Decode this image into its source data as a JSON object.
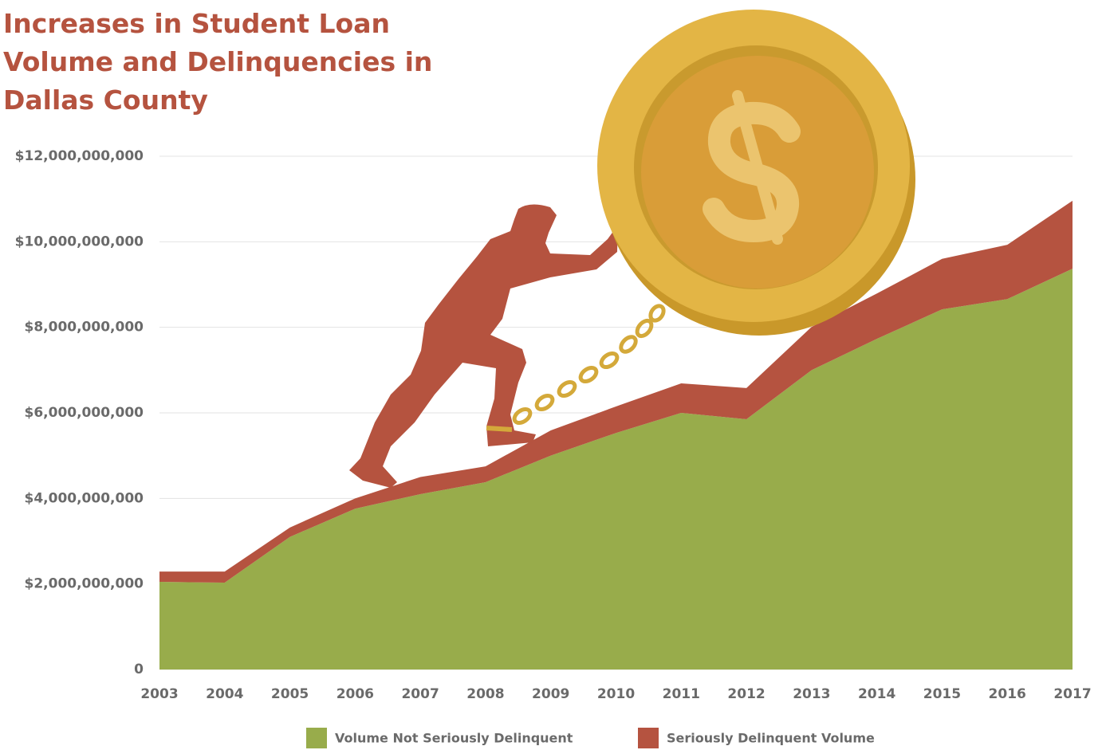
{
  "chart_data": {
    "type": "stacked-area",
    "title": "Increases in Student Loan Volume and Delinquencies in Dallas County",
    "categories": [
      "2003",
      "2004",
      "2005",
      "2006",
      "2007",
      "2008",
      "2009",
      "2010",
      "2011",
      "2012",
      "2013",
      "2014",
      "2015",
      "2016",
      "2017"
    ],
    "series": [
      {
        "name": "Volume Not Seriously Delinquent",
        "color": "#98ac4b",
        "values": [
          2050000000,
          2030000000,
          3100000000,
          3760000000,
          4100000000,
          4380000000,
          5000000000,
          5530000000,
          6000000000,
          5850000000,
          7000000000,
          7730000000,
          8420000000,
          8660000000,
          9370000000
        ]
      },
      {
        "name": "Seriously Delinquent Volume",
        "color": "#b55340",
        "values": [
          240000000,
          260000000,
          220000000,
          240000000,
          400000000,
          370000000,
          590000000,
          620000000,
          690000000,
          730000000,
          1010000000,
          1060000000,
          1180000000,
          1270000000,
          1590000000
        ]
      }
    ],
    "ylim": [
      0,
      12000000000
    ],
    "yticks": [
      0,
      {
        "value": 2000000000,
        "label": "$2,000,000,000"
      },
      {
        "value": 4000000000,
        "label": "$4,000,000,000"
      },
      {
        "value": 6000000000,
        "label": "$6,000,000,000"
      },
      {
        "value": 8000000000,
        "label": "$8,000,000,000"
      },
      {
        "value": 10000000000,
        "label": "$10,000,000,000"
      },
      {
        "value": 12000000000,
        "label": "$12,000,000,000"
      }
    ],
    "grid": true
  }
}
